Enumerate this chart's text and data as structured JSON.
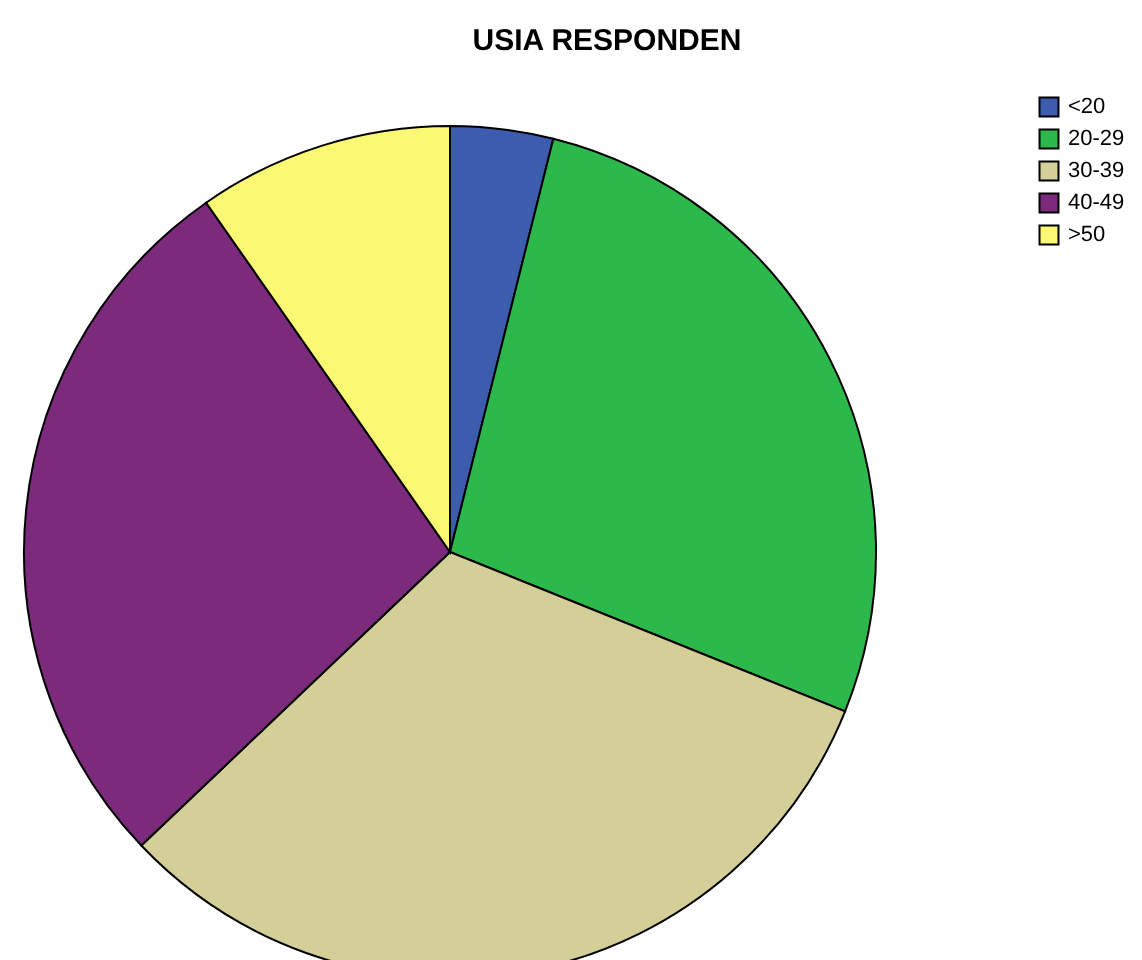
{
  "chart_data": {
    "type": "pie",
    "title": "USIA RESPONDEN",
    "categories": [
      "<20",
      "20-29",
      "30-39",
      "40-49",
      ">50"
    ],
    "values": [
      3.9,
      27.2,
      31.8,
      27.4,
      9.7
    ],
    "colors": [
      "#3d5cae",
      "#2db84b",
      "#d4cf98",
      "#7c2a7c",
      "#fbf873"
    ],
    "legend": "top right"
  }
}
